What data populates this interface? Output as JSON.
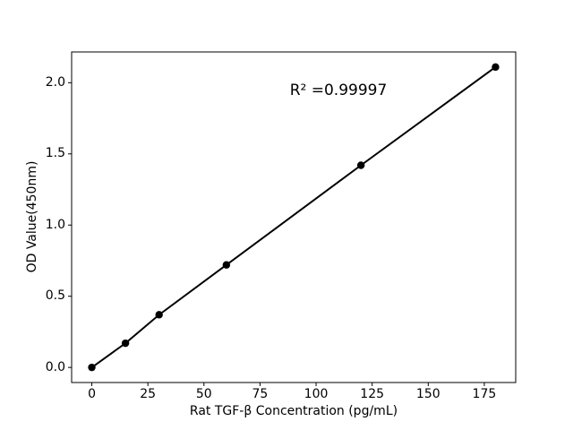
{
  "figure": {
    "background_color": "#ffffff",
    "foreground_color": "#000000"
  },
  "chart_data": {
    "type": "line",
    "series_name": "standard-curve",
    "x": [
      0,
      15,
      30,
      60,
      120,
      180
    ],
    "y": [
      0.0,
      0.17,
      0.37,
      0.72,
      1.42,
      2.11
    ],
    "title": "",
    "xlabel": "Rat TGF-β Concentration (pg/mL)",
    "ylabel": "OD Value(450nm)",
    "annotation": "R² =0.99997",
    "xlim": [
      -9,
      189
    ],
    "ylim": [
      -0.106,
      2.216
    ],
    "x_ticks": [
      "0",
      "25",
      "50",
      "75",
      "100",
      "125",
      "150",
      "175"
    ],
    "y_ticks": [
      "0.0",
      "0.5",
      "1.0",
      "1.5",
      "2.0"
    ],
    "grid": false,
    "legend": "none",
    "line_color": "#000000",
    "marker_color": "#000000",
    "axis_color": "#000000",
    "marker": "circle"
  }
}
